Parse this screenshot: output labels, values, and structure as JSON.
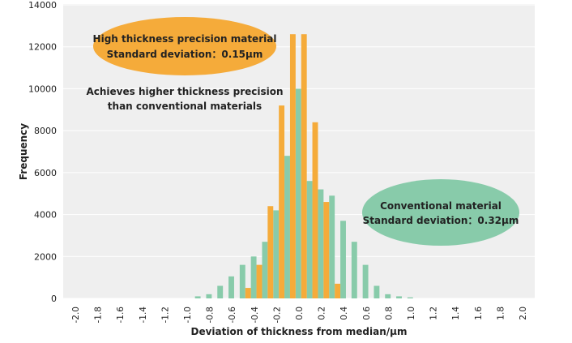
{
  "chart_data": {
    "type": "bar",
    "xlabel": "Deviation of thickness from median/μm",
    "ylabel": "Frequency",
    "xlim": [
      -2.0,
      2.0
    ],
    "ylim": [
      0,
      14000
    ],
    "x_ticks": [
      "-2.0",
      "-1.8",
      "-1.6",
      "-1.4",
      "-1.2",
      "-1.0",
      "-0.8",
      "-0.6",
      "-0.4",
      "-0.2",
      "0.0",
      "0.2",
      "0.4",
      "0.6",
      "0.8",
      "1.0",
      "1.2",
      "1.4",
      "1.6",
      "1.8",
      "2.0"
    ],
    "y_ticks": [
      "0",
      "2000",
      "4000",
      "6000",
      "8000",
      "10000",
      "12000",
      "14000"
    ],
    "grid": true,
    "background_color": "#EFEFEF",
    "series": [
      {
        "name": "Conventional material",
        "color": "#88CBAA",
        "x": [
          -0.9,
          -0.8,
          -0.7,
          -0.6,
          -0.5,
          -0.4,
          -0.3,
          -0.2,
          -0.1,
          0.0,
          0.1,
          0.2,
          0.3,
          0.4,
          0.5,
          0.6,
          0.7,
          0.8,
          0.9,
          1.0
        ],
        "values": [
          100,
          200,
          600,
          1050,
          1600,
          2000,
          2700,
          4200,
          6800,
          10000,
          5600,
          5200,
          4900,
          3700,
          2700,
          1600,
          600,
          200,
          100,
          50
        ]
      },
      {
        "name": "High thickness precision material",
        "color": "#F5AB3A",
        "x": [
          -0.4,
          -0.3,
          -0.2,
          -0.1,
          0.0,
          0.1,
          0.2,
          0.3,
          0.4
        ],
        "values": [
          500,
          1600,
          4400,
          9200,
          12600,
          12600,
          8400,
          4600,
          700
        ]
      }
    ],
    "annotations": {
      "high_precision": {
        "line1": "High thickness precision material",
        "line2": "Standard deviation：0.15μm",
        "color": "#F5AB3A"
      },
      "note": {
        "line1": "Achieves higher thickness precision",
        "line2": "than conventional materials"
      },
      "conventional": {
        "line1": "Conventional material",
        "line2": "Standard deviation：0.32μm",
        "color": "#88CBAA"
      }
    }
  }
}
